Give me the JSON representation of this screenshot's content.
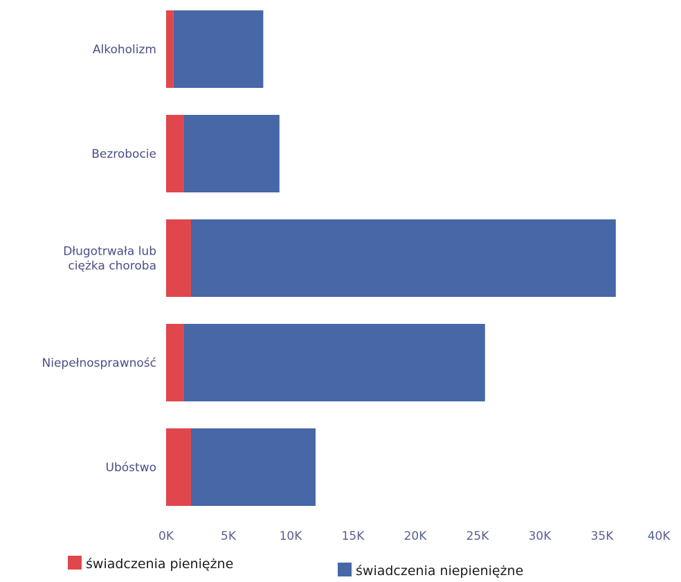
{
  "chart_data": {
    "type": "bar",
    "orientation": "horizontal",
    "stacked": true,
    "title": "",
    "xlabel": "",
    "ylabel": "",
    "categories": [
      "Alkoholizm",
      "Bezrobocie",
      "Długotrwała lub\nciężka choroba",
      "Niepełnosprawność",
      "Ubóstwo"
    ],
    "series": [
      {
        "name": "świadczenia pieniężne",
        "color": "#e0474c",
        "values": [
          600,
          1400,
          2000,
          1400,
          2000
        ]
      },
      {
        "name": "świadczenia niepieniężne",
        "color": "#4767a6",
        "values": [
          7200,
          7700,
          34100,
          24200,
          10000
        ]
      }
    ],
    "xlim": [
      0,
      40000
    ],
    "xticks": [
      "0K",
      "5K",
      "10K",
      "15K",
      "20K",
      "25K",
      "30K",
      "35K",
      "40K"
    ],
    "xtick_values": [
      0,
      5000,
      10000,
      15000,
      20000,
      25000,
      30000,
      35000,
      40000
    ],
    "grid": false,
    "legend_position": "bottom"
  }
}
